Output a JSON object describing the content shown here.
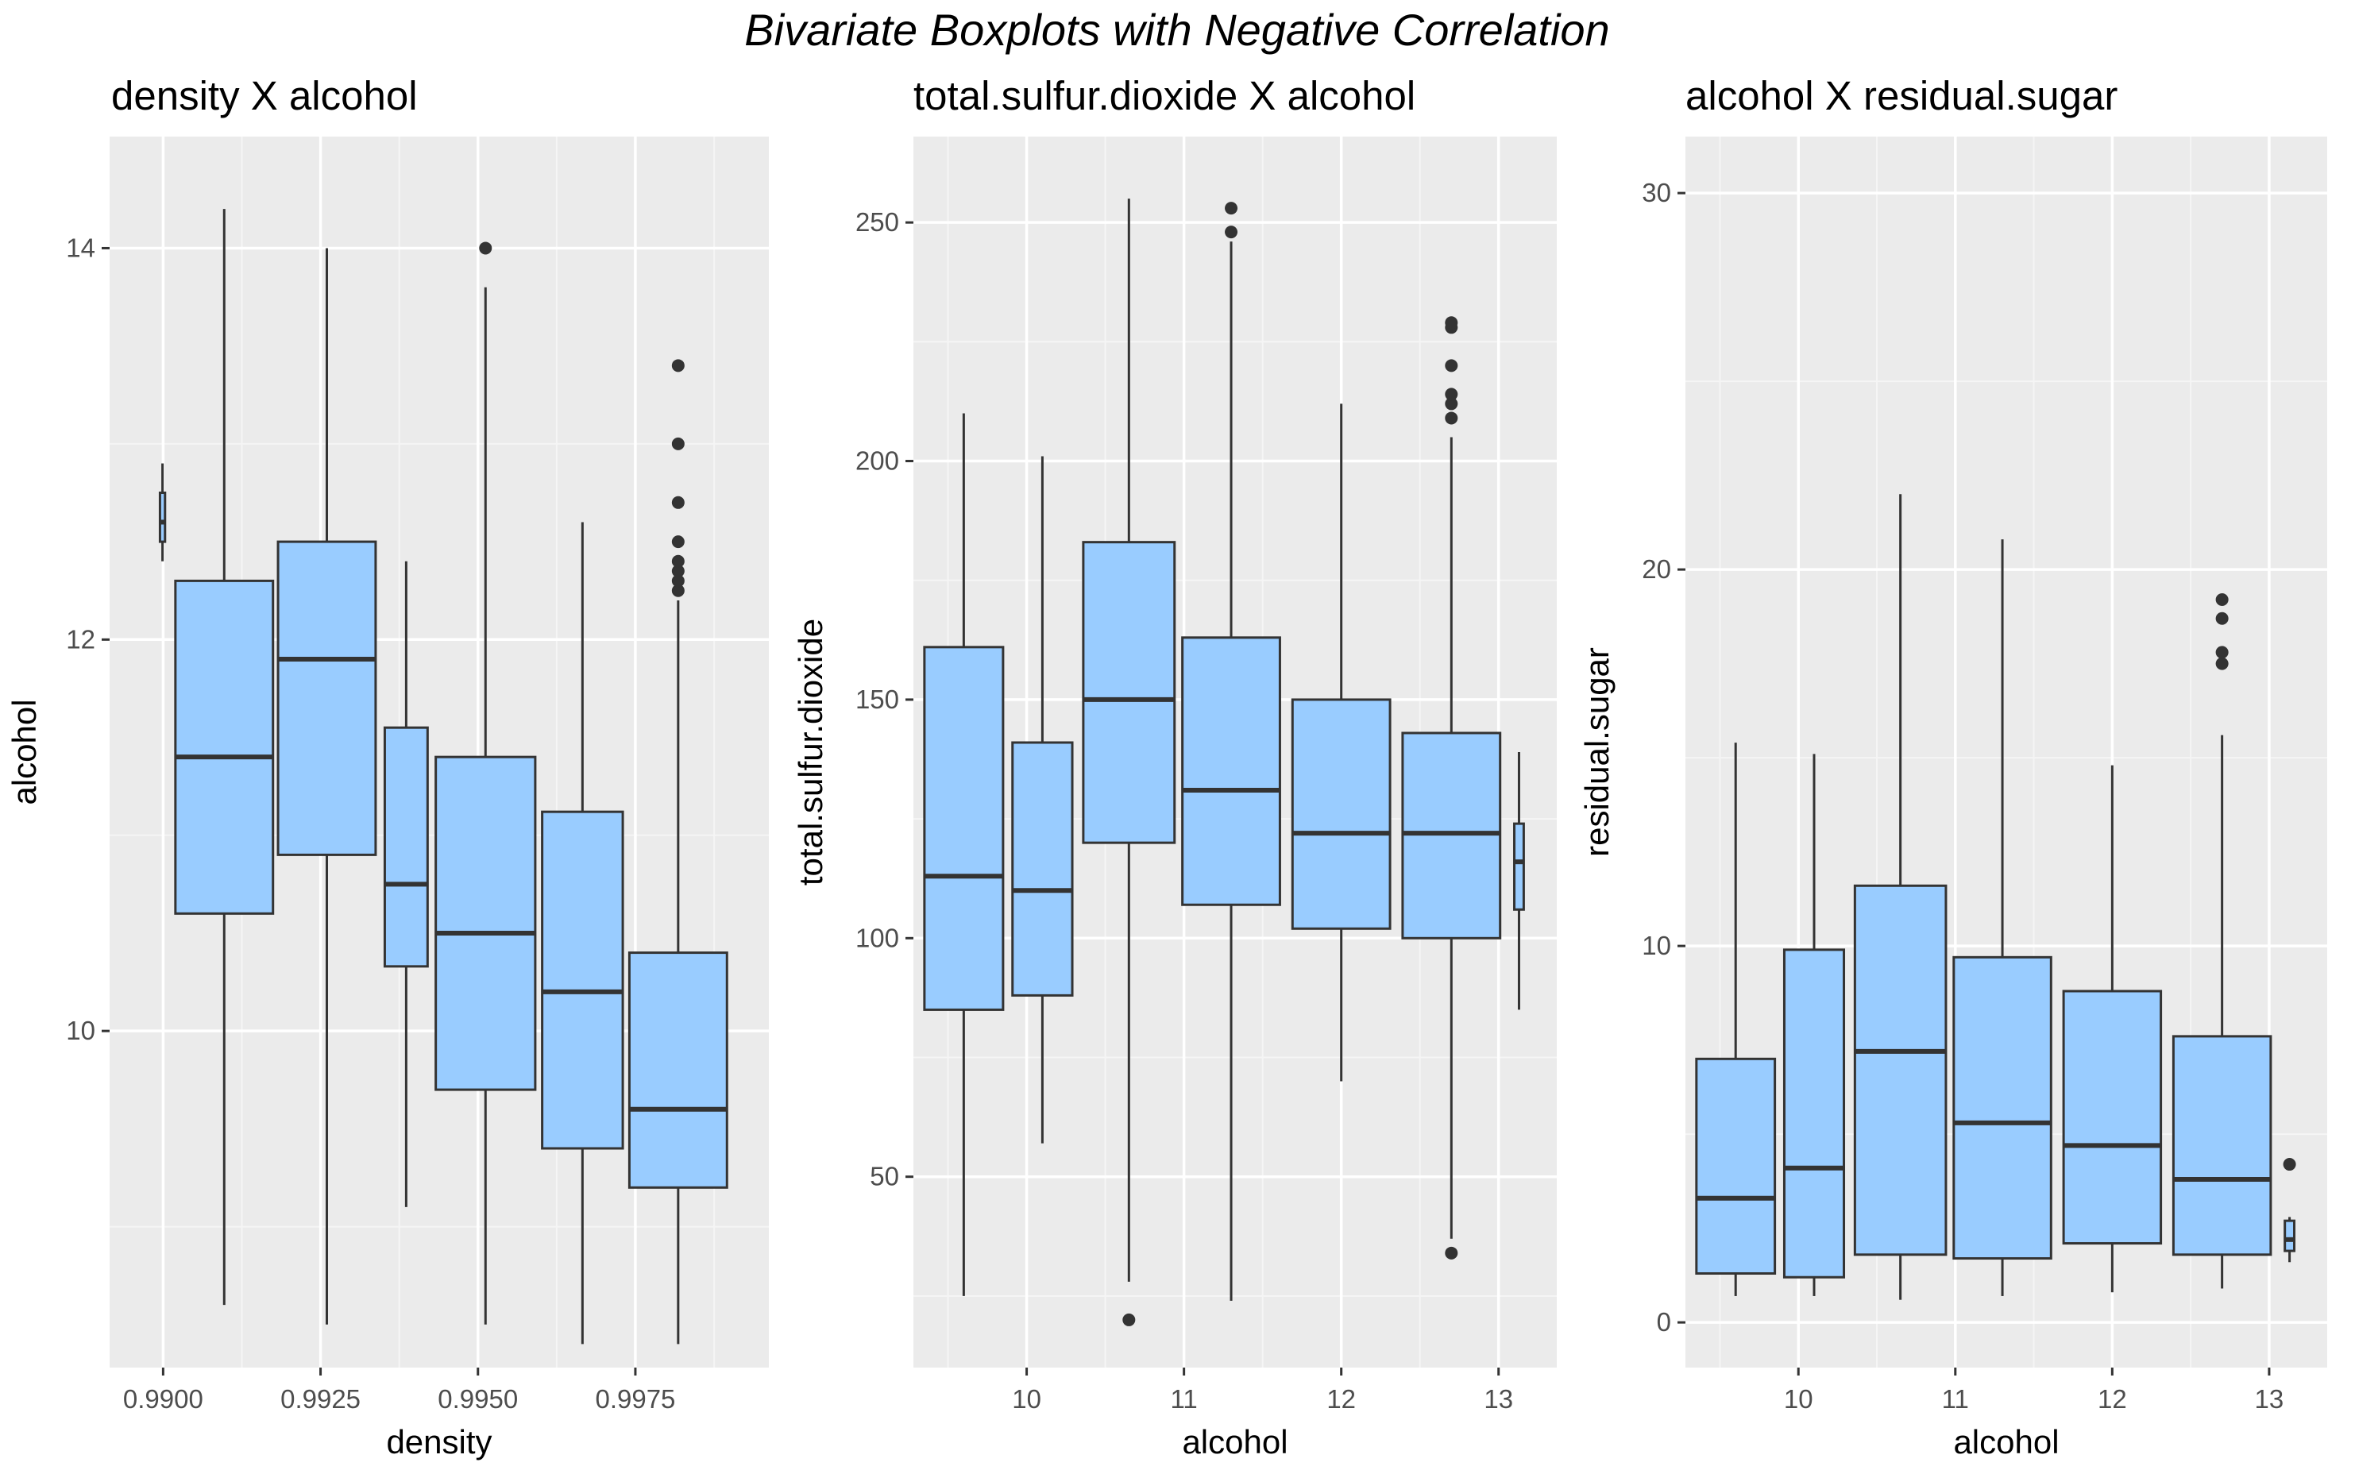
{
  "figure": {
    "title": "Bivariate Boxplots with Negative Correlation"
  },
  "style": {
    "panel_background": "#ebebeb",
    "grid_major": "#ffffff",
    "grid_minor": "#f5f5f5",
    "box_fill": "#99ccff",
    "box_stroke": "#333333",
    "outlier_color": "#333333",
    "tick_color": "#333333",
    "tick_label_color": "#4d4d4d"
  },
  "chart_data": [
    {
      "type": "boxplot",
      "title": "density X alcohol",
      "xlabel": "density",
      "ylabel": "alcohol",
      "xlim": [
        0.98915,
        0.99962
      ],
      "ylim": [
        8.28,
        14.57
      ],
      "xticks": [
        0.99,
        0.9925,
        0.995,
        0.9975
      ],
      "xtick_labels": [
        "0.9900",
        "0.9925",
        "0.9950",
        "0.9975"
      ],
      "yticks": [
        10,
        12,
        14
      ],
      "ytick_labels": [
        "10",
        "12",
        "14"
      ],
      "boxes": [
        {
          "x": 0.98999,
          "width": 8e-05,
          "whisker_low": 12.4,
          "q1": 12.5,
          "median": 12.6,
          "q3": 12.75,
          "whisker_high": 12.9,
          "outliers": []
        },
        {
          "x": 0.99097,
          "width": 0.00155,
          "whisker_low": 8.6,
          "q1": 10.6,
          "median": 11.4,
          "q3": 12.3,
          "whisker_high": 14.2,
          "outliers": []
        },
        {
          "x": 0.9926,
          "width": 0.00155,
          "whisker_low": 8.5,
          "q1": 10.9,
          "median": 11.9,
          "q3": 12.5,
          "whisker_high": 14.0,
          "outliers": []
        },
        {
          "x": 0.99386,
          "width": 0.00068,
          "whisker_low": 9.1,
          "q1": 10.33,
          "median": 10.75,
          "q3": 11.55,
          "whisker_high": 12.4,
          "outliers": []
        },
        {
          "x": 0.99512,
          "width": 0.00158,
          "whisker_low": 8.5,
          "q1": 9.7,
          "median": 10.5,
          "q3": 11.4,
          "whisker_high": 13.8,
          "outliers": [
            14.0
          ]
        },
        {
          "x": 0.99666,
          "width": 0.00128,
          "whisker_low": 8.4,
          "q1": 9.4,
          "median": 10.2,
          "q3": 11.12,
          "whisker_high": 12.6,
          "outliers": []
        },
        {
          "x": 0.99818,
          "width": 0.00155,
          "whisker_low": 8.4,
          "q1": 9.2,
          "median": 9.6,
          "q3": 10.4,
          "whisker_high": 12.2,
          "outliers": [
            12.25,
            12.3,
            12.35,
            12.4,
            12.5,
            12.7,
            13.0,
            13.4
          ]
        }
      ]
    },
    {
      "type": "boxplot",
      "title": "total.sulfur.dioxide X alcohol",
      "xlabel": "alcohol",
      "ylabel": "total.sulfur.dioxide",
      "xlim": [
        9.28,
        13.37
      ],
      "ylim": [
        10,
        268
      ],
      "xticks": [
        10,
        11,
        12,
        13
      ],
      "xtick_labels": [
        "10",
        "11",
        "12",
        "13"
      ],
      "yticks": [
        50,
        100,
        150,
        200,
        250
      ],
      "ytick_labels": [
        "50",
        "100",
        "150",
        "200",
        "250"
      ],
      "boxes": [
        {
          "x": 9.6,
          "width": 0.5,
          "whisker_low": 25,
          "q1": 85,
          "median": 113,
          "q3": 161,
          "whisker_high": 210,
          "outliers": []
        },
        {
          "x": 10.1,
          "width": 0.38,
          "whisker_low": 57,
          "q1": 88,
          "median": 110,
          "q3": 141,
          "whisker_high": 201,
          "outliers": []
        },
        {
          "x": 10.65,
          "width": 0.58,
          "whisker_low": 28,
          "q1": 120,
          "median": 150,
          "q3": 183,
          "whisker_high": 255,
          "outliers": [
            20
          ]
        },
        {
          "x": 11.3,
          "width": 0.62,
          "whisker_low": 24,
          "q1": 107,
          "median": 131,
          "q3": 163,
          "whisker_high": 246,
          "outliers": [
            248,
            253
          ]
        },
        {
          "x": 12.0,
          "width": 0.62,
          "whisker_low": 70,
          "q1": 102,
          "median": 122,
          "q3": 150,
          "whisker_high": 212,
          "outliers": []
        },
        {
          "x": 12.7,
          "width": 0.62,
          "whisker_low": 37,
          "q1": 100,
          "median": 122,
          "q3": 143,
          "whisker_high": 205,
          "outliers": [
            34,
            209,
            212,
            214,
            220,
            228,
            229
          ]
        },
        {
          "x": 13.13,
          "width": 0.06,
          "whisker_low": 85,
          "q1": 106,
          "median": 116,
          "q3": 124,
          "whisker_high": 139,
          "outliers": []
        }
      ]
    },
    {
      "type": "boxplot",
      "title": "alcohol X residual.sugar",
      "xlabel": "alcohol",
      "ylabel": "residual.sugar",
      "xlim": [
        9.28,
        13.37
      ],
      "ylim": [
        -1.2,
        31.5
      ],
      "xticks": [
        10,
        11,
        12,
        13
      ],
      "xtick_labels": [
        "10",
        "11",
        "12",
        "13"
      ],
      "yticks": [
        0,
        10,
        20,
        30
      ],
      "ytick_labels": [
        "0",
        "10",
        "20",
        "30"
      ],
      "boxes": [
        {
          "x": 9.6,
          "width": 0.5,
          "whisker_low": 0.7,
          "q1": 1.3,
          "median": 3.3,
          "q3": 7.0,
          "whisker_high": 15.4,
          "outliers": []
        },
        {
          "x": 10.1,
          "width": 0.38,
          "whisker_low": 0.7,
          "q1": 1.2,
          "median": 4.1,
          "q3": 9.9,
          "whisker_high": 15.1,
          "outliers": []
        },
        {
          "x": 10.65,
          "width": 0.58,
          "whisker_low": 0.6,
          "q1": 1.8,
          "median": 7.2,
          "q3": 11.6,
          "whisker_high": 22.0,
          "outliers": []
        },
        {
          "x": 11.3,
          "width": 0.62,
          "whisker_low": 0.7,
          "q1": 1.7,
          "median": 5.3,
          "q3": 9.7,
          "whisker_high": 20.8,
          "outliers": []
        },
        {
          "x": 12.0,
          "width": 0.62,
          "whisker_low": 0.8,
          "q1": 2.1,
          "median": 4.7,
          "q3": 8.8,
          "whisker_high": 14.8,
          "outliers": []
        },
        {
          "x": 12.7,
          "width": 0.62,
          "whisker_low": 0.9,
          "q1": 1.8,
          "median": 3.8,
          "q3": 7.6,
          "whisker_high": 15.6,
          "outliers": [
            17.5,
            17.8,
            18.7,
            19.2
          ]
        },
        {
          "x": 13.13,
          "width": 0.06,
          "whisker_low": 1.6,
          "q1": 1.9,
          "median": 2.2,
          "q3": 2.7,
          "whisker_high": 2.8,
          "outliers": [
            4.2
          ]
        }
      ]
    }
  ]
}
